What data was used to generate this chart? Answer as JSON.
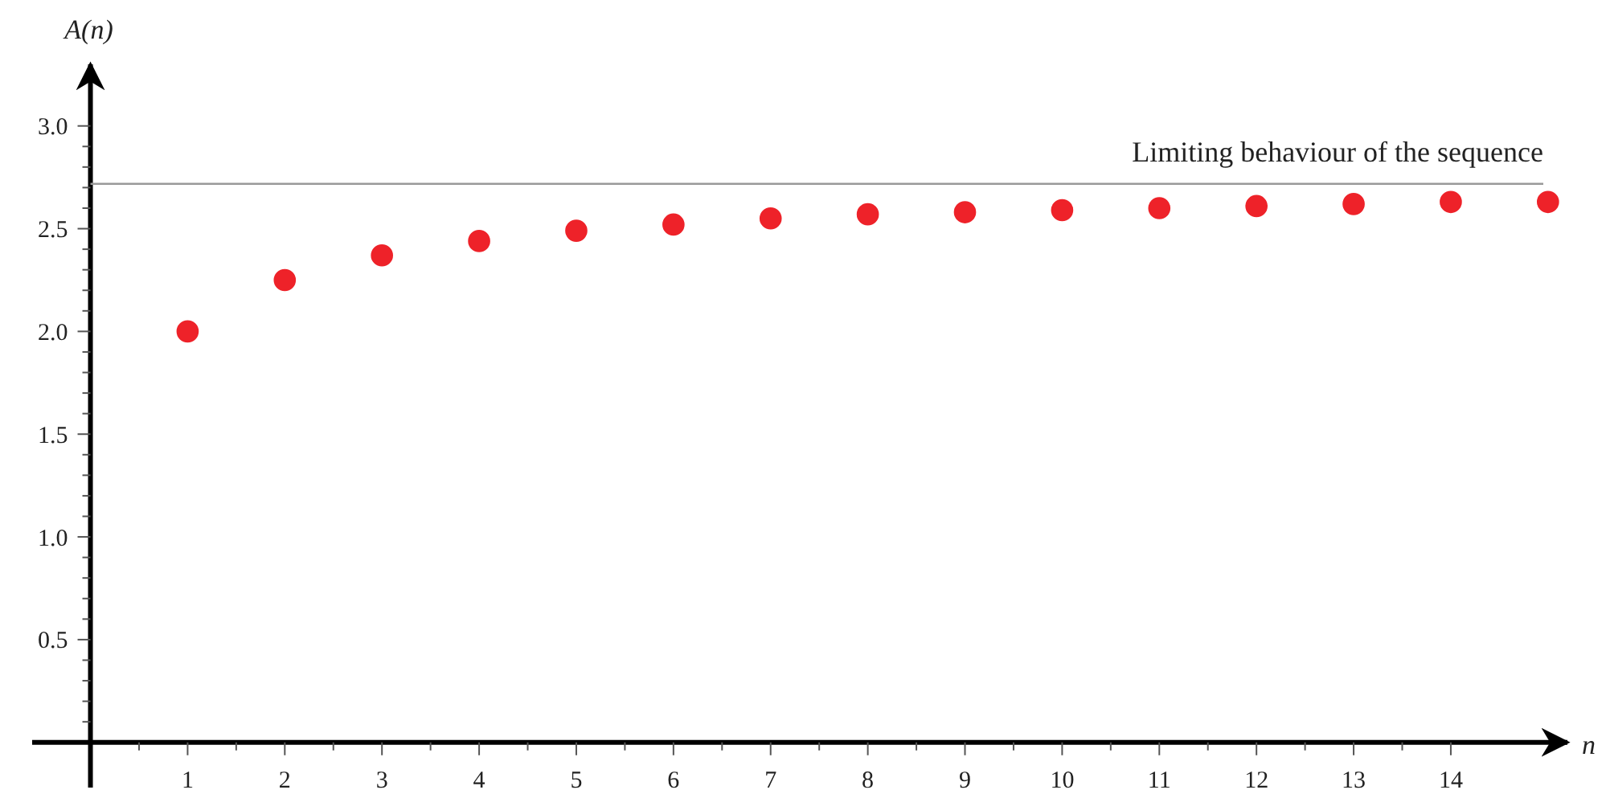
{
  "chart_data": {
    "type": "scatter",
    "xlabel": "n",
    "ylabel": "A(n)",
    "x": [
      1,
      2,
      3,
      4,
      5,
      6,
      7,
      8,
      9,
      10,
      11,
      12,
      13,
      14,
      15
    ],
    "series": [
      {
        "color": "#ee2229",
        "values": [
          2.0,
          2.25,
          2.37,
          2.44,
          2.49,
          2.52,
          2.55,
          2.57,
          2.58,
          2.59,
          2.6,
          2.61,
          2.62,
          2.63,
          2.63
        ]
      }
    ],
    "marker": "circle",
    "xlim": [
      -0.6,
      15.2
    ],
    "ylim": [
      -0.22,
      3.3
    ],
    "xticks": [
      1,
      {
        "value": 1.5,
        "label": null
      },
      2,
      {
        "value": 2.5,
        "label": null
      },
      3,
      {
        "value": 3.5,
        "label": null
      },
      4,
      {
        "value": 4.5,
        "label": null
      },
      5,
      {
        "value": 5.5,
        "label": null
      },
      6,
      {
        "value": 6.5,
        "label": null
      },
      7,
      {
        "value": 7.5,
        "label": null
      },
      8,
      {
        "value": 8.5,
        "label": null
      },
      9,
      {
        "value": 9.5,
        "label": null
      },
      10,
      {
        "value": 10.5,
        "label": null
      },
      11,
      {
        "value": 11.5,
        "label": null
      },
      12,
      {
        "value": 12.5,
        "label": null
      },
      13,
      {
        "value": 13.5,
        "label": null
      },
      14,
      {
        "value": 0.5,
        "label": null
      }
    ],
    "yticks": [
      {
        "value": 0.1,
        "label": null
      },
      {
        "value": 0.2,
        "label": null
      },
      {
        "value": 0.3,
        "label": null
      },
      {
        "value": 0.4,
        "label": null
      },
      {
        "value": 0.5,
        "label": "0.5"
      },
      {
        "value": 0.6,
        "label": null
      },
      {
        "value": 0.7,
        "label": null
      },
      {
        "value": 0.8,
        "label": null
      },
      {
        "value": 0.9,
        "label": null
      },
      {
        "value": 1,
        "label": "1.0"
      },
      {
        "value": 1.1,
        "label": null
      },
      {
        "value": 1.2,
        "label": null
      },
      {
        "value": 1.3,
        "label": null
      },
      {
        "value": 1.4,
        "label": null
      },
      {
        "value": 1.5,
        "label": "1.5"
      },
      {
        "value": 1.6,
        "label": null
      },
      {
        "value": 1.7,
        "label": null
      },
      {
        "value": 1.8,
        "label": null
      },
      {
        "value": 1.9,
        "label": null
      },
      {
        "value": 2,
        "label": "2.0"
      },
      {
        "value": 2.1,
        "label": null
      },
      {
        "value": 2.2,
        "label": null
      },
      {
        "value": 2.3,
        "label": null
      },
      {
        "value": 2.4,
        "label": null
      },
      {
        "value": 2.5,
        "label": "2.5"
      },
      {
        "value": 2.6,
        "label": null
      },
      {
        "value": 2.7,
        "label": null
      },
      {
        "value": 2.8,
        "label": null
      },
      {
        "value": 2.9,
        "label": null
      },
      {
        "value": 3,
        "label": "3.0"
      }
    ],
    "ref_lines": [
      {
        "axis": "y",
        "value": 2.718,
        "label": "Limiting behaviour of the sequence",
        "color": "#999999"
      }
    ],
    "grid": false
  }
}
